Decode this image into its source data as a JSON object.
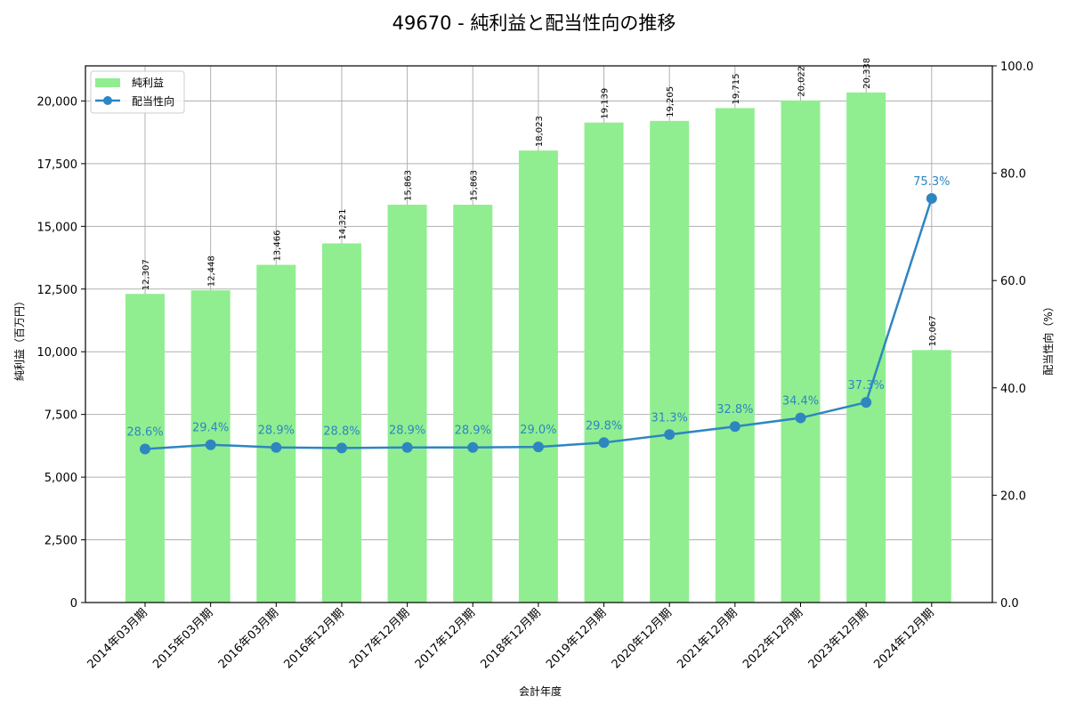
{
  "chart_data": {
    "type": "bar+line",
    "title": "49670 - 純利益と配当性向の推移",
    "xlabel": "会計年度",
    "ylabel_left": "純利益（百万円）",
    "ylabel_right": "配当性向（%）",
    "categories": [
      "2014年03月期",
      "2015年03月期",
      "2016年03月期",
      "2016年12月期",
      "2017年12月期",
      "2017年12月期",
      "2018年12月期",
      "2019年12月期",
      "2020年12月期",
      "2021年12月期",
      "2022年12月期",
      "2023年12月期",
      "2024年12月期"
    ],
    "series": [
      {
        "name": "純利益",
        "type": "bar",
        "axis": "left",
        "color": "#90ee90",
        "values": [
          12307,
          12448,
          13466,
          14321,
          15863,
          15863,
          18023,
          19139,
          19205,
          19715,
          20022,
          20338,
          10067
        ],
        "labels": [
          "12,307",
          "12,448",
          "13,466",
          "14,321",
          "15,863",
          "15,863",
          "18,023",
          "19,139",
          "19,205",
          "19,715",
          "20,022",
          "20,338",
          "10,067"
        ]
      },
      {
        "name": "配当性向",
        "type": "line",
        "axis": "right",
        "color": "#2e86c1",
        "values": [
          28.6,
          29.4,
          28.9,
          28.8,
          28.9,
          28.9,
          29.0,
          29.8,
          31.3,
          32.8,
          34.4,
          37.3,
          75.3
        ],
        "labels": [
          "28.6%",
          "29.4%",
          "28.9%",
          "28.8%",
          "28.9%",
          "28.9%",
          "29.0%",
          "29.8%",
          "31.3%",
          "32.8%",
          "34.4%",
          "37.3%",
          "75.3%"
        ]
      }
    ],
    "ylim_left": [
      0,
      21400
    ],
    "yticks_left": [
      0,
      2500,
      5000,
      7500,
      10000,
      12500,
      15000,
      17500,
      20000
    ],
    "yticklabels_left": [
      "0",
      "2,500",
      "5,000",
      "7,500",
      "10,000",
      "12,500",
      "15,000",
      "17,500",
      "20,000"
    ],
    "ylim_right": [
      0,
      100
    ],
    "yticks_right": [
      0,
      20,
      40,
      60,
      80,
      100
    ],
    "yticklabels_right": [
      "0.0",
      "20.0",
      "40.0",
      "60.0",
      "80.0",
      "100.0"
    ],
    "grid": true,
    "legend_position": "upper left"
  },
  "legend": {
    "items": [
      {
        "label": "純利益"
      },
      {
        "label": "配当性向"
      }
    ]
  }
}
